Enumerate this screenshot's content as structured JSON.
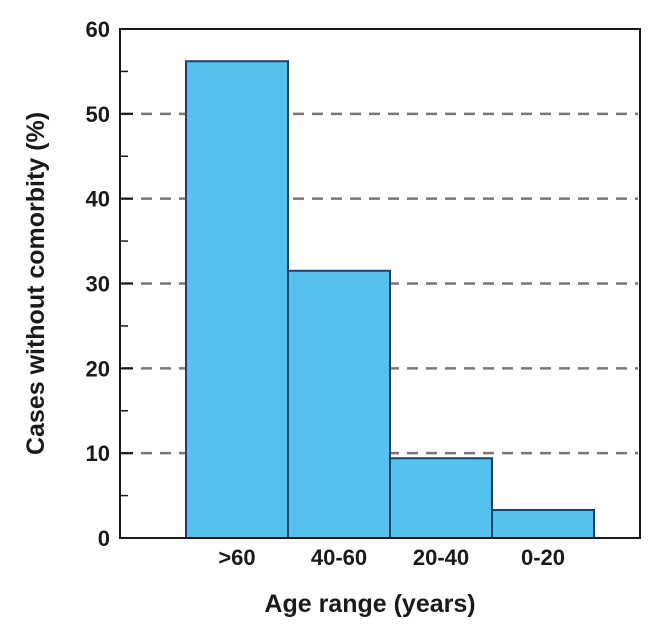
{
  "chart_data": {
    "type": "bar",
    "categories": [
      ">60",
      "40-60",
      "20-40",
      "0-20"
    ],
    "values": [
      56.2,
      31.5,
      9.4,
      3.3
    ],
    "title": "",
    "xlabel": "Age range (years)",
    "ylabel": "Cases without comorbity (%)",
    "ylim": [
      0,
      60
    ],
    "yticks": [
      0,
      10,
      20,
      30,
      40,
      50,
      60
    ],
    "grid": "horizontal-dashed",
    "bar_color": "#55c1ee",
    "bar_edge_color": "#1f3f6e",
    "grid_color": "#777777",
    "axis_color": "#1a1a1a"
  }
}
